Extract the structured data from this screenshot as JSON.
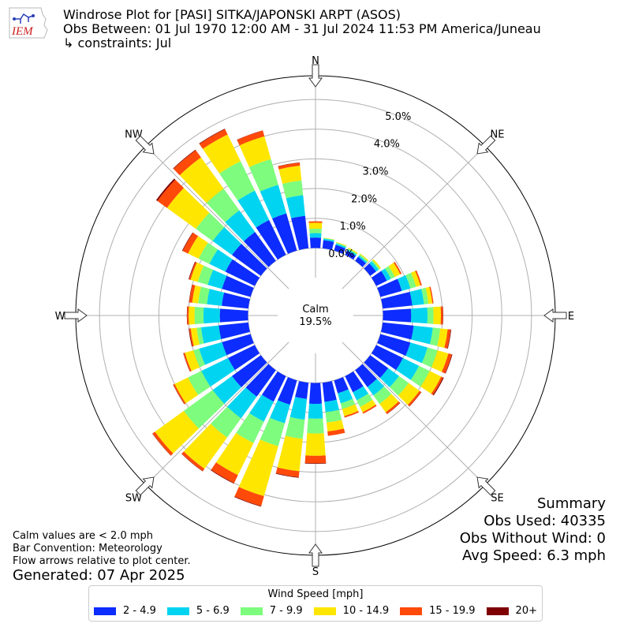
{
  "header": {
    "title": "Windrose Plot for [PASI] SITKA/JAPONSKI ARPT (ASOS)",
    "obs_between": "Obs Between: 01 Jul 1970 12:00 AM - 31 Jul 2024 11:53 PM America/Juneau",
    "constraints": " ↳ constraints: Jul",
    "logo_text": "IEM"
  },
  "summary": {
    "heading": "Summary",
    "obs_used": "Obs Used: 40335",
    "obs_without_wind": "Obs Without Wind: 0",
    "avg_speed": "Avg Speed: 6.3 mph"
  },
  "notes": {
    "calm_def": "Calm values are < 2.0 mph",
    "bar_convention": "Bar Convention: Meteorology",
    "flow_arrows": "Flow arrows relative to plot center.",
    "generated": "Generated: 07 Apr 2025"
  },
  "chart_data": {
    "type": "windrose",
    "calm_label": "Calm",
    "calm_value": "19.5%",
    "radial_ticks": [
      "0.0%",
      "1.0%",
      "2.0%",
      "3.0%",
      "4.0%",
      "5.0%"
    ],
    "radial_max_percent": 5.8,
    "calm_offset_percent": 1.0,
    "compass_labels": [
      "N",
      "NE",
      "E",
      "SE",
      "S",
      "SW",
      "W",
      "NW"
    ],
    "legend_title": "Wind Speed [mph]",
    "bins": [
      {
        "label": "2 - 4.9",
        "color": "#0d2cff"
      },
      {
        "label": "5 - 6.9",
        "color": "#00d4f0"
      },
      {
        "label": "7 - 9.9",
        "color": "#7dfc7d"
      },
      {
        "label": "10 - 14.9",
        "color": "#ffe600"
      },
      {
        "label": "15 - 19.9",
        "color": "#ff4a0a"
      },
      {
        "label": "20+",
        "color": "#7f0000"
      }
    ],
    "directions_deg": [
      0,
      10,
      20,
      30,
      40,
      50,
      60,
      70,
      80,
      90,
      100,
      110,
      120,
      130,
      140,
      150,
      160,
      170,
      180,
      190,
      200,
      210,
      220,
      230,
      240,
      250,
      260,
      270,
      280,
      290,
      300,
      310,
      320,
      330,
      340,
      350
    ],
    "cumulative_percent": [
      [
        0.35,
        0.5,
        0.65,
        0.85,
        0.9,
        0.9
      ],
      [
        0.28,
        0.33,
        0.35,
        0.36,
        0.36,
        0.36
      ],
      [
        0.2,
        0.25,
        0.28,
        0.3,
        0.3,
        0.3
      ],
      [
        0.15,
        0.2,
        0.24,
        0.27,
        0.27,
        0.27
      ],
      [
        0.17,
        0.22,
        0.27,
        0.3,
        0.3,
        0.3
      ],
      [
        0.25,
        0.35,
        0.4,
        0.45,
        0.45,
        0.45
      ],
      [
        0.4,
        0.55,
        0.7,
        0.9,
        0.95,
        0.95
      ],
      [
        0.75,
        1.05,
        1.25,
        1.4,
        1.45,
        1.45
      ],
      [
        1.0,
        1.4,
        1.55,
        1.68,
        1.72,
        1.72
      ],
      [
        0.95,
        1.5,
        1.7,
        1.95,
        2.02,
        2.03
      ],
      [
        1.05,
        1.7,
        1.95,
        2.2,
        2.3,
        2.32
      ],
      [
        1.05,
        1.65,
        2.0,
        2.38,
        2.5,
        2.52
      ],
      [
        1.0,
        1.6,
        2.0,
        2.43,
        2.5,
        2.53
      ],
      [
        0.75,
        1.2,
        1.6,
        2.05,
        2.12,
        2.13
      ],
      [
        0.7,
        1.05,
        1.4,
        1.75,
        1.82,
        1.83
      ],
      [
        0.6,
        0.9,
        1.15,
        1.35,
        1.4,
        1.4
      ],
      [
        0.45,
        0.8,
        1.0,
        1.25,
        1.3,
        1.3
      ],
      [
        0.65,
        1.0,
        1.35,
        1.65,
        1.8,
        1.8
      ],
      [
        0.7,
        1.2,
        1.7,
        2.45,
        2.7,
        2.72
      ],
      [
        0.55,
        1.25,
        1.9,
        3.0,
        3.2,
        3.22
      ],
      [
        0.85,
        1.5,
        2.3,
        4.05,
        4.4,
        4.42
      ],
      [
        0.95,
        1.7,
        2.5,
        3.7,
        4.0,
        4.02
      ],
      [
        1.1,
        2.0,
        2.8,
        4.1,
        4.2,
        4.21
      ],
      [
        1.2,
        2.0,
        3.2,
        4.4,
        4.5,
        4.51
      ],
      [
        1.0,
        2.0,
        2.5,
        3.0,
        3.05,
        3.06
      ],
      [
        1.0,
        1.8,
        2.0,
        2.3,
        2.35,
        2.36
      ],
      [
        1.0,
        1.6,
        1.75,
        1.95,
        2.0,
        2.02
      ],
      [
        0.95,
        1.5,
        1.8,
        2.0,
        2.05,
        2.06
      ],
      [
        0.9,
        1.4,
        1.7,
        1.9,
        2.0,
        2.01
      ],
      [
        1.0,
        1.5,
        1.85,
        2.1,
        2.15,
        2.17
      ],
      [
        1.1,
        1.7,
        2.1,
        2.5,
        2.7,
        2.72
      ],
      [
        1.2,
        2.0,
        2.7,
        3.9,
        4.3,
        4.35
      ],
      [
        1.2,
        2.1,
        3.0,
        4.3,
        4.6,
        4.62
      ],
      [
        1.3,
        2.4,
        3.5,
        4.5,
        4.7,
        4.72
      ],
      [
        1.3,
        2.3,
        3.2,
        4.0,
        4.2,
        4.21
      ],
      [
        1.1,
        1.8,
        2.3,
        2.8,
        2.9,
        2.91
      ]
    ]
  }
}
